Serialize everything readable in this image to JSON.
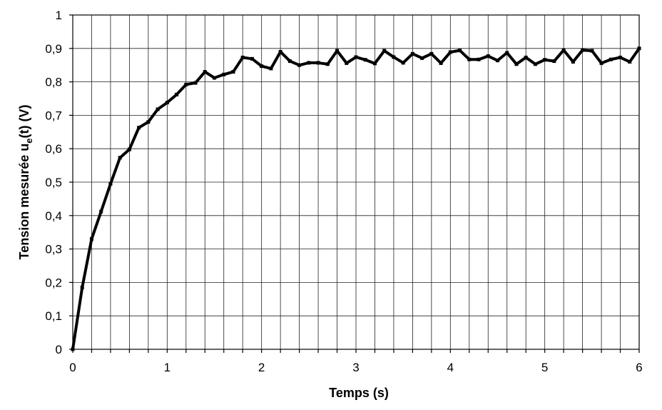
{
  "chart_data": {
    "type": "line",
    "xlabel": "Temps (s)",
    "ylabel": "Tension mesurée u",
    "ylabel_sub": "e",
    "ylabel_tail": "(t) (V)",
    "xlim": [
      0,
      6
    ],
    "ylim": [
      0,
      1
    ],
    "grid": true,
    "x_major_ticks": [
      0,
      1,
      2,
      3,
      4,
      5,
      6
    ],
    "x_minor_step": 0.2,
    "y_ticks": [
      0,
      0.1,
      0.2,
      0.3,
      0.4,
      0.5,
      0.6,
      0.7,
      0.8,
      0.9,
      1
    ],
    "y_tick_labels": [
      "0",
      "0,1",
      "0,2",
      "0,3",
      "0,4",
      "0,5",
      "0,6",
      "0,7",
      "0,8",
      "0,9",
      "1"
    ],
    "x_tick_labels": [
      "0",
      "1",
      "2",
      "3",
      "4",
      "5",
      "6"
    ],
    "series": [
      {
        "color": "#000000",
        "x": [
          0,
          0.1,
          0.2,
          0.3,
          0.4,
          0.5,
          0.6,
          0.7,
          0.8,
          0.9,
          1.0,
          1.1,
          1.2,
          1.3,
          1.4,
          1.5,
          1.6,
          1.7,
          1.8,
          1.9,
          2.0,
          2.1,
          2.2,
          2.3,
          2.4,
          2.5,
          2.6,
          2.7,
          2.8,
          2.9,
          3.0,
          3.1,
          3.2,
          3.3,
          3.4,
          3.5,
          3.6,
          3.7,
          3.8,
          3.9,
          4.0,
          4.1,
          4.2,
          4.3,
          4.4,
          4.5,
          4.6,
          4.7,
          4.8,
          4.9,
          5.0,
          5.1,
          5.2,
          5.3,
          5.4,
          5.5,
          5.6,
          5.7,
          5.8,
          5.9,
          6.0
        ],
        "y": [
          0,
          0.185,
          0.33,
          0.412,
          0.495,
          0.573,
          0.598,
          0.663,
          0.68,
          0.718,
          0.738,
          0.762,
          0.792,
          0.797,
          0.83,
          0.812,
          0.822,
          0.83,
          0.873,
          0.869,
          0.847,
          0.84,
          0.89,
          0.862,
          0.85,
          0.857,
          0.857,
          0.853,
          0.893,
          0.856,
          0.874,
          0.866,
          0.855,
          0.893,
          0.874,
          0.857,
          0.884,
          0.871,
          0.884,
          0.856,
          0.889,
          0.894,
          0.867,
          0.867,
          0.877,
          0.864,
          0.887,
          0.853,
          0.873,
          0.853,
          0.866,
          0.862,
          0.895,
          0.86,
          0.895,
          0.893,
          0.856,
          0.867,
          0.873,
          0.86,
          0.9
        ]
      }
    ]
  }
}
